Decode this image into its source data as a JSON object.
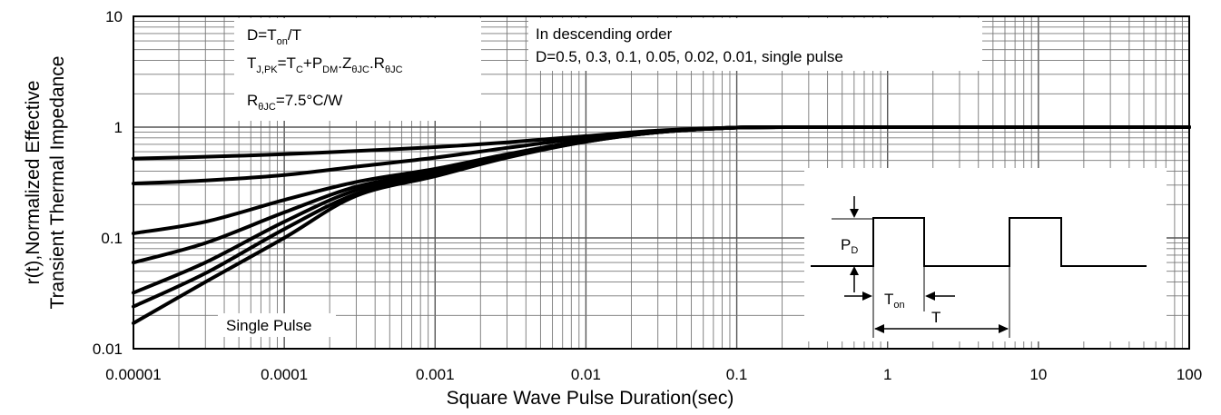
{
  "chart_data": {
    "type": "line",
    "x_scale": "log",
    "y_scale": "log",
    "xlim": [
      1e-05,
      100
    ],
    "ylim": [
      0.01,
      10
    ],
    "xlabel": "Square Wave Pulse Duration(sec)",
    "ylabel_lines": [
      "r(t),Normalized Effective",
      "Transient Thermal Impedance"
    ],
    "x_ticks": [
      "0.00001",
      "0.0001",
      "0.001",
      "0.01",
      "0.1",
      "1",
      "10",
      "100"
    ],
    "y_ticks": [
      "10",
      "1",
      "0.1",
      "0.01"
    ],
    "grid": true,
    "annotations": {
      "definitions": {
        "d_equation": {
          "base": "D=T",
          "sub": "on",
          "tail": "/T"
        },
        "tj_equation": {
          "parts": [
            {
              "t": "T",
              "sub": "J,PK"
            },
            {
              "t": "=T",
              "sub": "C"
            },
            {
              "t": "+P",
              "sub": "DM"
            },
            {
              "t": ".Z",
              "sub": "θJC"
            },
            {
              "t": ".R",
              "sub": "θJC"
            }
          ]
        },
        "r_equation": {
          "base": "R",
          "sub": "θJC",
          "tail": "=7.5°C/W"
        }
      },
      "order_title": "In descending order",
      "order_values": "D=0.5, 0.3, 0.1, 0.05, 0.02, 0.01, single pulse",
      "single_pulse_label": "Single Pulse",
      "inset": {
        "pd_base": "P",
        "pd_sub": "D",
        "ton_base": "T",
        "ton_sub": "on",
        "t_label": "T"
      }
    },
    "series": [
      {
        "x": [
          1e-05,
          3e-05,
          0.0001,
          0.0003,
          0.001,
          0.003,
          0.01,
          0.03,
          0.1,
          0.3,
          1,
          10,
          100
        ],
        "y": [
          0.52,
          0.54,
          0.57,
          0.61,
          0.66,
          0.73,
          0.83,
          0.93,
          0.99,
          1.0,
          1.0,
          1.0,
          1.0
        ]
      },
      {
        "x": [
          1e-05,
          3e-05,
          0.0001,
          0.0003,
          0.001,
          0.003,
          0.01,
          0.03,
          0.1,
          0.3,
          1,
          10,
          100
        ],
        "y": [
          0.31,
          0.33,
          0.37,
          0.44,
          0.53,
          0.65,
          0.8,
          0.92,
          0.99,
          1.0,
          1.0,
          1.0,
          1.0
        ]
      },
      {
        "x": [
          1e-05,
          3e-05,
          0.0001,
          0.0003,
          0.001,
          0.003,
          0.01,
          0.03,
          0.1,
          0.3,
          1,
          10,
          100
        ],
        "y": [
          0.11,
          0.14,
          0.22,
          0.32,
          0.42,
          0.57,
          0.76,
          0.91,
          0.99,
          1.0,
          1.0,
          1.0,
          1.0
        ]
      },
      {
        "x": [
          1e-05,
          3e-05,
          0.0001,
          0.0003,
          0.001,
          0.003,
          0.01,
          0.03,
          0.1,
          0.3,
          1,
          10,
          100
        ],
        "y": [
          0.06,
          0.09,
          0.17,
          0.29,
          0.4,
          0.56,
          0.75,
          0.9,
          0.99,
          1.0,
          1.0,
          1.0,
          1.0
        ]
      },
      {
        "x": [
          1e-05,
          3e-05,
          0.0001,
          0.0003,
          0.001,
          0.003,
          0.01,
          0.03,
          0.1,
          0.3,
          1,
          10,
          100
        ],
        "y": [
          0.032,
          0.06,
          0.14,
          0.27,
          0.39,
          0.55,
          0.75,
          0.9,
          0.99,
          1.0,
          1.0,
          1.0,
          1.0
        ]
      },
      {
        "x": [
          1e-05,
          3e-05,
          0.0001,
          0.0003,
          0.001,
          0.003,
          0.01,
          0.03,
          0.1,
          0.3,
          1,
          10,
          100
        ],
        "y": [
          0.024,
          0.048,
          0.12,
          0.25,
          0.37,
          0.54,
          0.74,
          0.9,
          0.99,
          1.0,
          1.0,
          1.0,
          1.0
        ]
      },
      {
        "x": [
          1e-05,
          3e-05,
          0.0001,
          0.0003,
          0.001,
          0.003,
          0.01,
          0.03,
          0.1,
          0.3,
          1,
          10,
          100
        ],
        "y": [
          0.017,
          0.04,
          0.1,
          0.24,
          0.36,
          0.53,
          0.74,
          0.9,
          0.99,
          1.0,
          1.0,
          1.0,
          1.0
        ]
      }
    ]
  }
}
